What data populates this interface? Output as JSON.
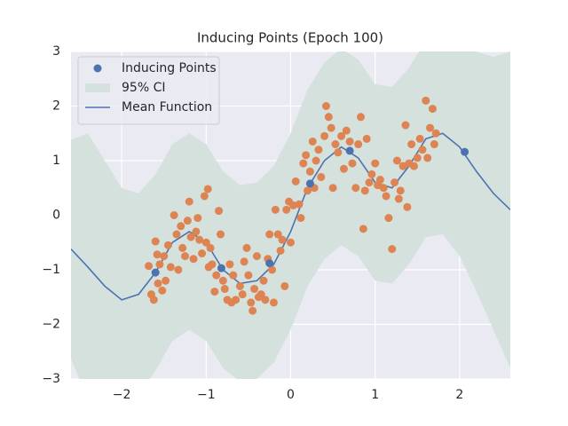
{
  "chart_data": {
    "type": "line",
    "title": "Inducing Points (Epoch 100)",
    "xlim": [
      -2.6,
      2.6
    ],
    "ylim": [
      -3,
      3
    ],
    "xticks": [
      {
        "value": -2,
        "label": "−2"
      },
      {
        "value": -1,
        "label": "−1"
      },
      0,
      1,
      2
    ],
    "yticks": [
      {
        "value": -3,
        "label": "−3"
      },
      {
        "value": -2,
        "label": "−2"
      },
      {
        "value": -1,
        "label": "−1"
      },
      0,
      1,
      2,
      3
    ],
    "grid": true,
    "legend": "upper left",
    "series": [
      {
        "name": "Inducing Points",
        "type": "scatter",
        "color": "#4c72b0",
        "x": [
          -1.6,
          -0.82,
          -0.25,
          0.23,
          0.7,
          2.06
        ],
        "values": [
          -1.05,
          -0.97,
          -0.88,
          0.58,
          1.18,
          1.16
        ]
      },
      {
        "name": "95% CI",
        "type": "band",
        "color": "#d5e1dd",
        "x": [
          -2.6,
          -2.4,
          -2.2,
          -2.0,
          -1.8,
          -1.6,
          -1.4,
          -1.2,
          -1.0,
          -0.8,
          -0.6,
          -0.4,
          -0.2,
          0,
          0.2,
          0.4,
          0.6,
          0.8,
          1.0,
          1.2,
          1.4,
          1.6,
          1.8,
          2.0,
          2.2,
          2.4,
          2.6
        ],
        "upper": [
          1.38,
          1.5,
          1.0,
          0.5,
          0.4,
          0.75,
          1.3,
          1.5,
          1.3,
          0.8,
          0.55,
          0.6,
          0.9,
          1.5,
          2.3,
          2.8,
          3.05,
          2.85,
          2.4,
          2.35,
          2.7,
          3.2,
          3.35,
          3.25,
          3.0,
          2.9,
          3.0
        ],
        "lower": [
          -2.62,
          -3.4,
          -3.6,
          -3.6,
          -3.3,
          -2.85,
          -2.3,
          -2.1,
          -2.3,
          -2.8,
          -3.05,
          -3.0,
          -2.7,
          -2.1,
          -1.3,
          -0.8,
          -0.55,
          -0.75,
          -1.2,
          -1.25,
          -0.9,
          -0.4,
          -0.35,
          -0.75,
          -1.4,
          -2.1,
          -2.8
        ]
      },
      {
        "name": "Mean Function",
        "type": "line",
        "color": "#4c72b0",
        "x": [
          -2.6,
          -2.4,
          -2.2,
          -2.0,
          -1.8,
          -1.6,
          -1.4,
          -1.2,
          -1.0,
          -0.8,
          -0.6,
          -0.4,
          -0.2,
          0,
          0.2,
          0.4,
          0.6,
          0.8,
          1.0,
          1.2,
          1.4,
          1.6,
          1.8,
          2.0,
          2.2,
          2.4,
          2.6
        ],
        "values": [
          -0.62,
          -0.95,
          -1.3,
          -1.55,
          -1.45,
          -1.05,
          -0.5,
          -0.3,
          -0.5,
          -1.0,
          -1.25,
          -1.2,
          -0.9,
          -0.3,
          0.5,
          1.0,
          1.25,
          1.05,
          0.6,
          0.5,
          0.9,
          1.4,
          1.5,
          1.25,
          0.8,
          0.4,
          0.1
        ]
      },
      {
        "type": "scatter",
        "color": "#dd8452",
        "x": [
          -1.68,
          -1.65,
          -1.62,
          -1.6,
          -1.58,
          -1.57,
          -1.55,
          -1.52,
          -1.5,
          -1.48,
          -1.45,
          -1.42,
          -1.38,
          -1.35,
          -1.33,
          -1.3,
          -1.28,
          -1.25,
          -1.22,
          -1.2,
          -1.18,
          -1.15,
          -1.12,
          -1.1,
          -1.08,
          -1.05,
          -1.02,
          -1.0,
          -0.98,
          -0.97,
          -0.95,
          -0.93,
          -0.9,
          -0.88,
          -0.85,
          -0.83,
          -0.8,
          -0.78,
          -0.75,
          -0.72,
          -0.7,
          -0.68,
          -0.65,
          -0.6,
          -0.57,
          -0.55,
          -0.52,
          -0.5,
          -0.47,
          -0.45,
          -0.43,
          -0.4,
          -0.38,
          -0.35,
          -0.32,
          -0.3,
          -0.27,
          -0.25,
          -0.22,
          -0.2,
          -0.18,
          -0.15,
          -0.12,
          -0.1,
          -0.07,
          -0.05,
          -0.02,
          0.0,
          0.03,
          0.06,
          0.1,
          0.12,
          0.15,
          0.18,
          0.2,
          0.23,
          0.26,
          0.28,
          0.3,
          0.33,
          0.36,
          0.4,
          0.42,
          0.45,
          0.48,
          0.5,
          0.53,
          0.56,
          0.6,
          0.63,
          0.66,
          0.7,
          0.73,
          0.77,
          0.8,
          0.83,
          0.86,
          0.88,
          0.9,
          0.93,
          0.96,
          1.0,
          1.03,
          1.06,
          1.1,
          1.13,
          1.16,
          1.2,
          1.23,
          1.26,
          1.28,
          1.3,
          1.33,
          1.36,
          1.38,
          1.4,
          1.43,
          1.46,
          1.5,
          1.53,
          1.56,
          1.6,
          1.62,
          1.65,
          1.68,
          1.7,
          1.72
        ],
        "values": [
          -0.93,
          -1.45,
          -1.55,
          -0.48,
          -0.72,
          -1.25,
          -0.9,
          -1.38,
          -0.75,
          -1.2,
          -0.55,
          -0.95,
          0.0,
          -0.35,
          -1.0,
          -0.2,
          -0.6,
          -0.75,
          -0.1,
          0.25,
          -0.4,
          -0.8,
          -0.3,
          -0.05,
          -0.45,
          -0.7,
          0.35,
          -0.5,
          0.48,
          -0.95,
          -0.6,
          -0.9,
          -1.4,
          -1.1,
          0.08,
          -0.35,
          -1.2,
          -1.35,
          -1.55,
          -0.9,
          -1.6,
          -1.1,
          -1.55,
          -1.3,
          -1.45,
          -0.85,
          -0.6,
          -1.1,
          -1.6,
          -1.75,
          -1.35,
          -0.75,
          -1.5,
          -1.45,
          -1.2,
          -1.55,
          -0.8,
          -0.35,
          -1.0,
          -1.6,
          0.1,
          -0.35,
          -0.65,
          -0.45,
          -1.3,
          0.1,
          0.25,
          -0.5,
          0.18,
          0.62,
          0.2,
          -0.05,
          0.95,
          1.1,
          0.45,
          0.8,
          1.35,
          0.5,
          1.0,
          1.2,
          0.7,
          1.45,
          2.0,
          1.8,
          1.6,
          0.5,
          1.3,
          1.15,
          1.45,
          0.85,
          1.55,
          1.35,
          0.95,
          0.5,
          1.3,
          1.8,
          -0.25,
          0.45,
          1.4,
          0.6,
          0.75,
          0.95,
          0.55,
          0.65,
          0.5,
          0.35,
          -0.05,
          -0.62,
          0.6,
          1.0,
          0.3,
          0.45,
          0.9,
          1.65,
          0.15,
          0.95,
          1.3,
          0.9,
          1.05,
          1.4,
          1.2,
          2.1,
          1.05,
          1.6,
          1.95,
          1.3,
          1.5
        ]
      }
    ]
  }
}
